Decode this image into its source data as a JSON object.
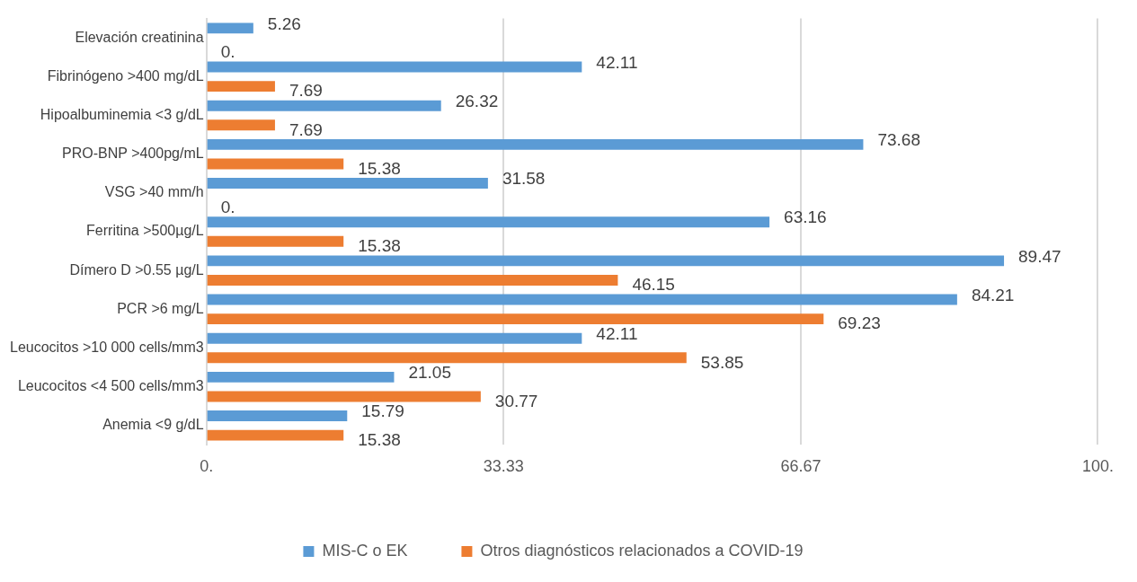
{
  "chart_data": {
    "type": "bar",
    "orientation": "horizontal",
    "categories": [
      "Elevación creatinina",
      "Fibrinógeno >400 mg/dL",
      "Hipoalbuminemia <3 g/dL",
      "PRO-BNP >400pg/mL",
      "VSG >40 mm/h",
      "Ferritina >500µg/L",
      "Dímero D >0.55 µg/L",
      "PCR >6 mg/L",
      "Leucocitos >10 000 cells/mm3",
      "Leucocitos <4 500 cells/mm3",
      "Anemia <9 g/dL"
    ],
    "series": [
      {
        "name": "MIS-C o EK",
        "color": "#5b9bd5",
        "values": [
          5.26,
          42.11,
          26.32,
          73.68,
          31.58,
          63.16,
          89.47,
          84.21,
          42.11,
          21.05,
          15.79
        ],
        "value_labels": [
          "5.26",
          "42.11",
          "26.32",
          "73.68",
          "31.58",
          "63.16",
          "89.47",
          "84.21",
          "42.11",
          "21.05",
          "15.79"
        ]
      },
      {
        "name": "Otros diagnósticos relacionados a COVID-19",
        "color": "#ed7d31",
        "values": [
          0,
          7.69,
          7.69,
          15.38,
          0,
          15.38,
          46.15,
          69.23,
          53.85,
          30.77,
          15.38
        ],
        "value_labels": [
          "0.",
          "7.69",
          "7.69",
          "15.38",
          "0.",
          "15.38",
          "46.15",
          "69.23",
          "53.85",
          "30.77",
          "15.38"
        ]
      }
    ],
    "xlim": [
      0,
      100
    ],
    "xticks": [
      {
        "value": 0,
        "label": "0."
      },
      33.33,
      66.67,
      {
        "value": 100,
        "label": "100."
      }
    ],
    "grid": "x",
    "legend": "bottom"
  }
}
